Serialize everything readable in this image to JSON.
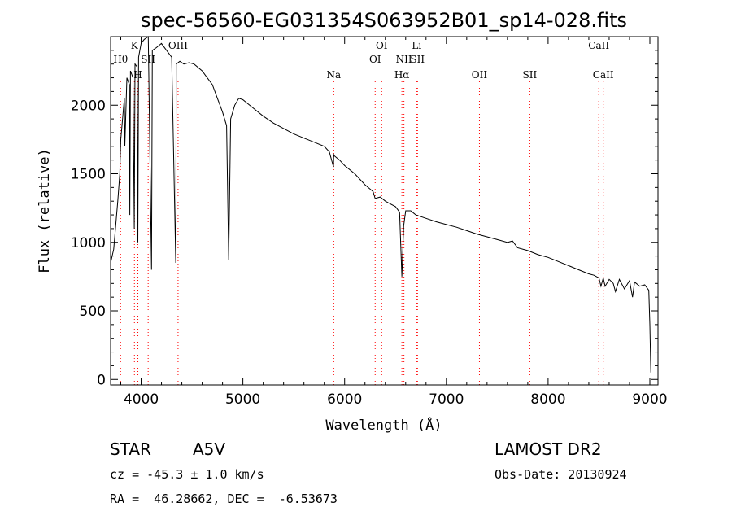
{
  "chart_data": {
    "type": "line",
    "title": "spec-56560-EG031354S063952B01_sp14-028.fits",
    "xlabel": "Wavelength (Å)",
    "ylabel": "Flux (relative)",
    "xlim": [
      3700,
      9080
    ],
    "ylim": [
      -40,
      2500
    ],
    "x_ticks": [
      4000,
      5000,
      6000,
      7000,
      8000,
      9000
    ],
    "y_ticks": [
      0,
      500,
      1000,
      1500,
      2000
    ],
    "grid": false,
    "line_color": "#000000",
    "marker_color": "#ff0000",
    "series": [
      {
        "x": [
          3700,
          3730,
          3770,
          3790,
          3800,
          3835,
          3840,
          3860,
          3885,
          3889,
          3895,
          3920,
          3933,
          3940,
          3960,
          3968,
          3975,
          4000,
          4030,
          4070,
          4102,
          4110,
          4150,
          4200,
          4250,
          4300,
          4340,
          4345,
          4380,
          4420,
          4470,
          4520,
          4600,
          4650,
          4700,
          4750,
          4800,
          4840,
          4861,
          4880,
          4920,
          4960,
          5000,
          5100,
          5200,
          5300,
          5400,
          5500,
          5600,
          5700,
          5800,
          5850,
          5890,
          5893,
          5900,
          5950,
          6000,
          6100,
          6200,
          6280,
          6300,
          6350,
          6400,
          6450,
          6500,
          6540,
          6563,
          6580,
          6600,
          6650,
          6700,
          6800,
          6900,
          7000,
          7100,
          7200,
          7300,
          7400,
          7500,
          7600,
          7650,
          7670,
          7700,
          7800,
          7900,
          8000,
          8100,
          8200,
          8300,
          8400,
          8450,
          8500,
          8520,
          8542,
          8560,
          8600,
          8640,
          8662,
          8700,
          8750,
          8800,
          8830,
          8850,
          8900,
          8950,
          8990,
          9000,
          9010
        ],
        "y": [
          850,
          950,
          1300,
          1500,
          1750,
          2050,
          1700,
          2200,
          2150,
          1200,
          2250,
          2200,
          1100,
          2300,
          2280,
          1000,
          2350,
          2450,
          2480,
          2500,
          800,
          2400,
          2420,
          2450,
          2400,
          2350,
          850,
          2300,
          2320,
          2300,
          2310,
          2300,
          2250,
          2200,
          2150,
          2050,
          1950,
          1850,
          870,
          1900,
          2000,
          2050,
          2040,
          1980,
          1920,
          1870,
          1830,
          1790,
          1760,
          1730,
          1700,
          1660,
          1550,
          1640,
          1630,
          1600,
          1560,
          1500,
          1420,
          1370,
          1320,
          1330,
          1300,
          1280,
          1260,
          1220,
          750,
          1120,
          1230,
          1230,
          1200,
          1175,
          1150,
          1130,
          1110,
          1085,
          1060,
          1040,
          1020,
          1000,
          1010,
          990,
          960,
          940,
          910,
          890,
          860,
          830,
          800,
          770,
          760,
          740,
          680,
          740,
          680,
          730,
          700,
          640,
          730,
          660,
          720,
          600,
          710,
          680,
          690,
          650,
          400,
          50
        ]
      }
    ],
    "line_markers": [
      {
        "label": "Hθ",
        "x": 3798,
        "level": 1
      },
      {
        "label": "K",
        "x": 3934,
        "level": 0
      },
      {
        "label": "H",
        "x": 3968,
        "level": 2
      },
      {
        "label": "SII",
        "x": 4069,
        "level": 1
      },
      {
        "label": "OIII",
        "x": 4363,
        "level": 0
      },
      {
        "label": "Na",
        "x": 5893,
        "level": 2
      },
      {
        "label": "OI",
        "x": 6300,
        "level": 1
      },
      {
        "label": "OI",
        "x": 6364,
        "level": 0
      },
      {
        "label": "Hα",
        "x": 6563,
        "level": 2
      },
      {
        "label": "NII",
        "x": 6583,
        "level": 1
      },
      {
        "label": "Li",
        "x": 6708,
        "level": 0
      },
      {
        "label": "SII",
        "x": 6716,
        "level": 1
      },
      {
        "label": "OII",
        "x": 7325,
        "level": 2
      },
      {
        "label": "SII",
        "x": 7820,
        "level": 2
      },
      {
        "label": "CaII",
        "x": 8498,
        "level": 0
      },
      {
        "label": "CaII",
        "x": 8542,
        "level": 2
      }
    ]
  },
  "footer": {
    "object_class": "STAR",
    "subclass": "A5V",
    "survey": "LAMOST DR2",
    "redshift": "cz = -45.3 ± 1.0 km/s",
    "obs_date": "Obs-Date: 20130924",
    "coords": "RA =  46.28662, DEC =  -6.53673"
  }
}
